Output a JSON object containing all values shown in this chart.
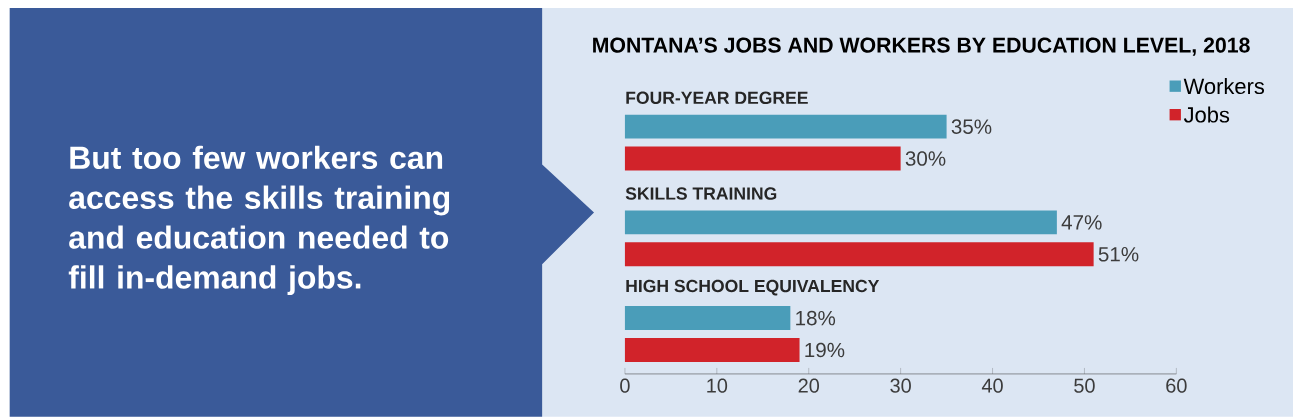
{
  "chart_data": {
    "type": "bar",
    "orientation": "horizontal",
    "title": "MONTANA’S JOBS AND WORKERS BY EDUCATION LEVEL, 2018",
    "annotations": [
      "But too few workers can access the skills training and education needed to fill in-demand jobs."
    ],
    "categories": [
      "FOUR-YEAR DEGREE",
      "SKILLS TRAINING",
      "HIGH SCHOOL EQUIVALENCY"
    ],
    "series": [
      {
        "name": "Workers",
        "color": "#4a9db9",
        "values": [
          35,
          47,
          18
        ],
        "value_labels": [
          "35%",
          "47%",
          "18%"
        ]
      },
      {
        "name": "Jobs",
        "color": "#d1232a",
        "values": [
          30,
          51,
          19
        ],
        "value_labels": [
          "30%",
          "51%",
          "19%"
        ]
      }
    ],
    "xlim": [
      0,
      60
    ],
    "xticks": [
      0,
      10,
      20,
      30,
      40,
      50,
      60
    ],
    "legend": "top right",
    "grid": false
  }
}
